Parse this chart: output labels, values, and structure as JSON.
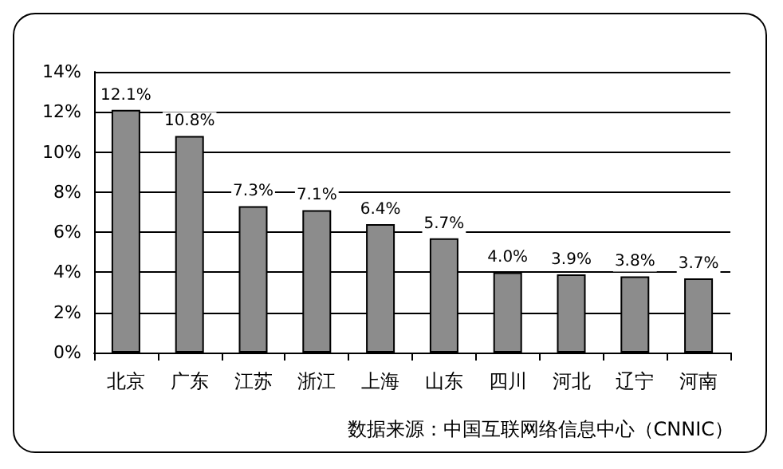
{
  "chart_data": {
    "type": "bar",
    "categories": [
      "北京",
      "广东",
      "江苏",
      "浙江",
      "上海",
      "山东",
      "四川",
      "河北",
      "辽宁",
      "河南"
    ],
    "values": [
      12.1,
      10.8,
      7.3,
      7.1,
      6.4,
      5.7,
      4.0,
      3.9,
      3.8,
      3.7
    ],
    "value_labels": [
      "12.1%",
      "10.8%",
      "7.3%",
      "7.1%",
      "6.4%",
      "5.7%",
      "4.0%",
      "3.9%",
      "3.8%",
      "3.7%"
    ],
    "color": "#8c8c8c",
    "ylim": [
      0,
      14
    ],
    "yticks": [
      {
        "value": 0,
        "label": "0%"
      },
      {
        "value": 2,
        "label": "2%"
      },
      {
        "value": 4,
        "label": "4%"
      },
      {
        "value": 6,
        "label": "6%"
      },
      {
        "value": 8,
        "label": "8%"
      },
      {
        "value": 10,
        "label": "10%"
      },
      {
        "value": 12,
        "label": "12%"
      },
      {
        "value": 14,
        "label": "14%"
      }
    ],
    "grid": "y",
    "annotations": [
      "数据来源：中国互联网络信息中心（CNNIC）"
    ]
  }
}
